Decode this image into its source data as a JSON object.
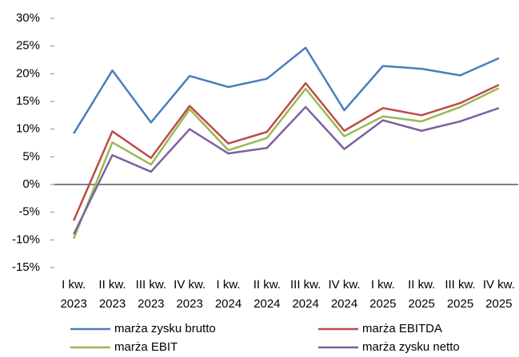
{
  "chart_data": {
    "type": "line",
    "categories": [
      [
        "I kw.",
        "2023"
      ],
      [
        "II kw.",
        "2023"
      ],
      [
        "III kw.",
        "2023"
      ],
      [
        "IV kw.",
        "2023"
      ],
      [
        "I kw.",
        "2024"
      ],
      [
        "II kw.",
        "2024"
      ],
      [
        "III kw.",
        "2024"
      ],
      [
        "IV kw.",
        "2024"
      ],
      [
        "I kw.",
        "2025"
      ],
      [
        "II kw.",
        "2025"
      ],
      [
        "III kw.",
        "2025"
      ],
      [
        "IV kw.",
        "2025"
      ]
    ],
    "series": [
      {
        "name": "marża zysku brutto",
        "color": "#4a7ebb",
        "values": [
          9.2,
          20.6,
          11.2,
          19.6,
          17.6,
          19.1,
          24.7,
          13.4,
          21.4,
          20.9,
          19.7,
          22.8
        ]
      },
      {
        "name": "marża EBITDA",
        "color": "#be4b48",
        "values": [
          -6.5,
          9.6,
          4.8,
          14.2,
          7.4,
          9.5,
          18.3,
          9.7,
          13.8,
          12.5,
          14.7,
          18.0
        ]
      },
      {
        "name": "marża EBIT",
        "color": "#98b954",
        "values": [
          -9.8,
          7.6,
          3.6,
          13.6,
          6.2,
          8.4,
          17.3,
          8.7,
          12.3,
          11.4,
          14.0,
          17.4
        ]
      },
      {
        "name": "marża zysku netto",
        "color": "#7d60a0",
        "values": [
          -9.0,
          5.3,
          2.3,
          10.0,
          5.6,
          6.6,
          14.0,
          6.4,
          11.6,
          9.7,
          11.4,
          13.8
        ]
      }
    ],
    "ylim": [
      -15,
      30
    ],
    "yticks": [
      {
        "value": -15,
        "label": "-15%"
      },
      {
        "value": -10,
        "label": "-10%"
      },
      {
        "value": -5,
        "label": "-5%"
      },
      {
        "value": 0,
        "label": "0%"
      },
      {
        "value": 5,
        "label": "5%"
      },
      {
        "value": 10,
        "label": "10%"
      },
      {
        "value": 15,
        "label": "15%"
      },
      {
        "value": 20,
        "label": "20%"
      },
      {
        "value": 25,
        "label": "25%"
      },
      {
        "value": 30,
        "label": "30%"
      }
    ]
  }
}
